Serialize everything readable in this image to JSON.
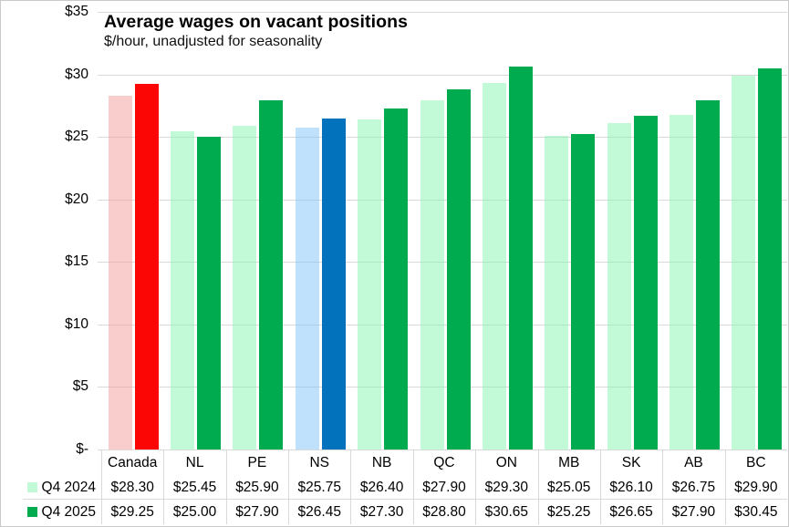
{
  "window": {
    "background": "#ffffff",
    "border_color": "#c9c9c9"
  },
  "chart_data": {
    "type": "bar",
    "title": "Average wages on vacant positions",
    "subtitle": "$/hour, unadjusted for seasonality",
    "categories": [
      "Canada",
      "NL",
      "PE",
      "NS",
      "NB",
      "QC",
      "ON",
      "MB",
      "SK",
      "AB",
      "BC"
    ],
    "series": [
      {
        "name": "Q4 2024",
        "values": [
          28.3,
          25.45,
          25.9,
          25.75,
          26.4,
          27.9,
          29.3,
          25.05,
          26.1,
          26.75,
          29.9
        ],
        "color_default": "rgba(133,245,177,0.5)",
        "color_overrides": {
          "Canada": "rgba(245,155,155,0.5)",
          "NS": "rgba(127,195,247,0.5)"
        },
        "legend_swatch": "#c2fad8"
      },
      {
        "name": "Q4 2025",
        "values": [
          29.25,
          25.0,
          27.9,
          26.45,
          27.3,
          28.8,
          30.65,
          25.25,
          26.65,
          27.9,
          30.45
        ],
        "color_default": "#00ab50",
        "color_overrides": {
          "Canada": "#fb0505",
          "NS": "#0272bc"
        },
        "legend_swatch": "#00ab50"
      }
    ],
    "ylim": [
      0,
      35
    ],
    "ytick_step": 5,
    "ytick_labels": [
      "$-",
      "$5",
      "$10",
      "$15",
      "$20",
      "$25",
      "$30",
      "$35"
    ],
    "grid": "horizontal",
    "gridline_color": "#d9d9d9",
    "legend_position": "table-left",
    "value_prefix": "$",
    "value_decimals": 2
  }
}
